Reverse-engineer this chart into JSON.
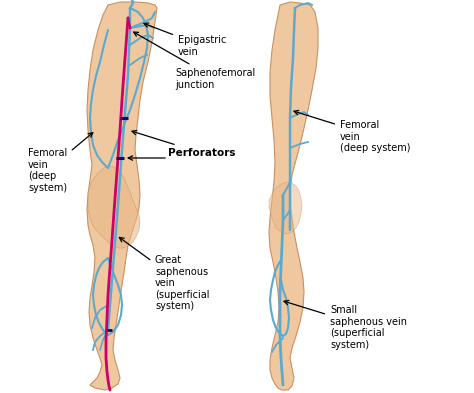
{
  "bg_color": "#ffffff",
  "skin_color": "#f0c8a0",
  "skin_mid": "#e8b888",
  "skin_dark": "#c89060",
  "deep_vein_color": "#5aaad0",
  "superficial_vein_color": "#cc0066",
  "perforator_color": "#220066",
  "annotation_color": "#000000",
  "labels": {
    "epigastric": "Epigastric\nvein",
    "saphenofemoral": "Saphenofemoral\njunction",
    "femoral_left": "Femoral\nvein\n(deep\nsystem)",
    "perforators": "Perforators",
    "great_saphenous": "Great\nsaphenous\nvein\n(superficial\nsystem)",
    "femoral_right": "Femoral\nvein\n(deep system)",
    "small_saphenous": "Small\nsaphenous vein\n(superficial\nsystem)"
  },
  "figsize": [
    4.74,
    3.93
  ],
  "dpi": 100,
  "ann_fs": 7.0
}
